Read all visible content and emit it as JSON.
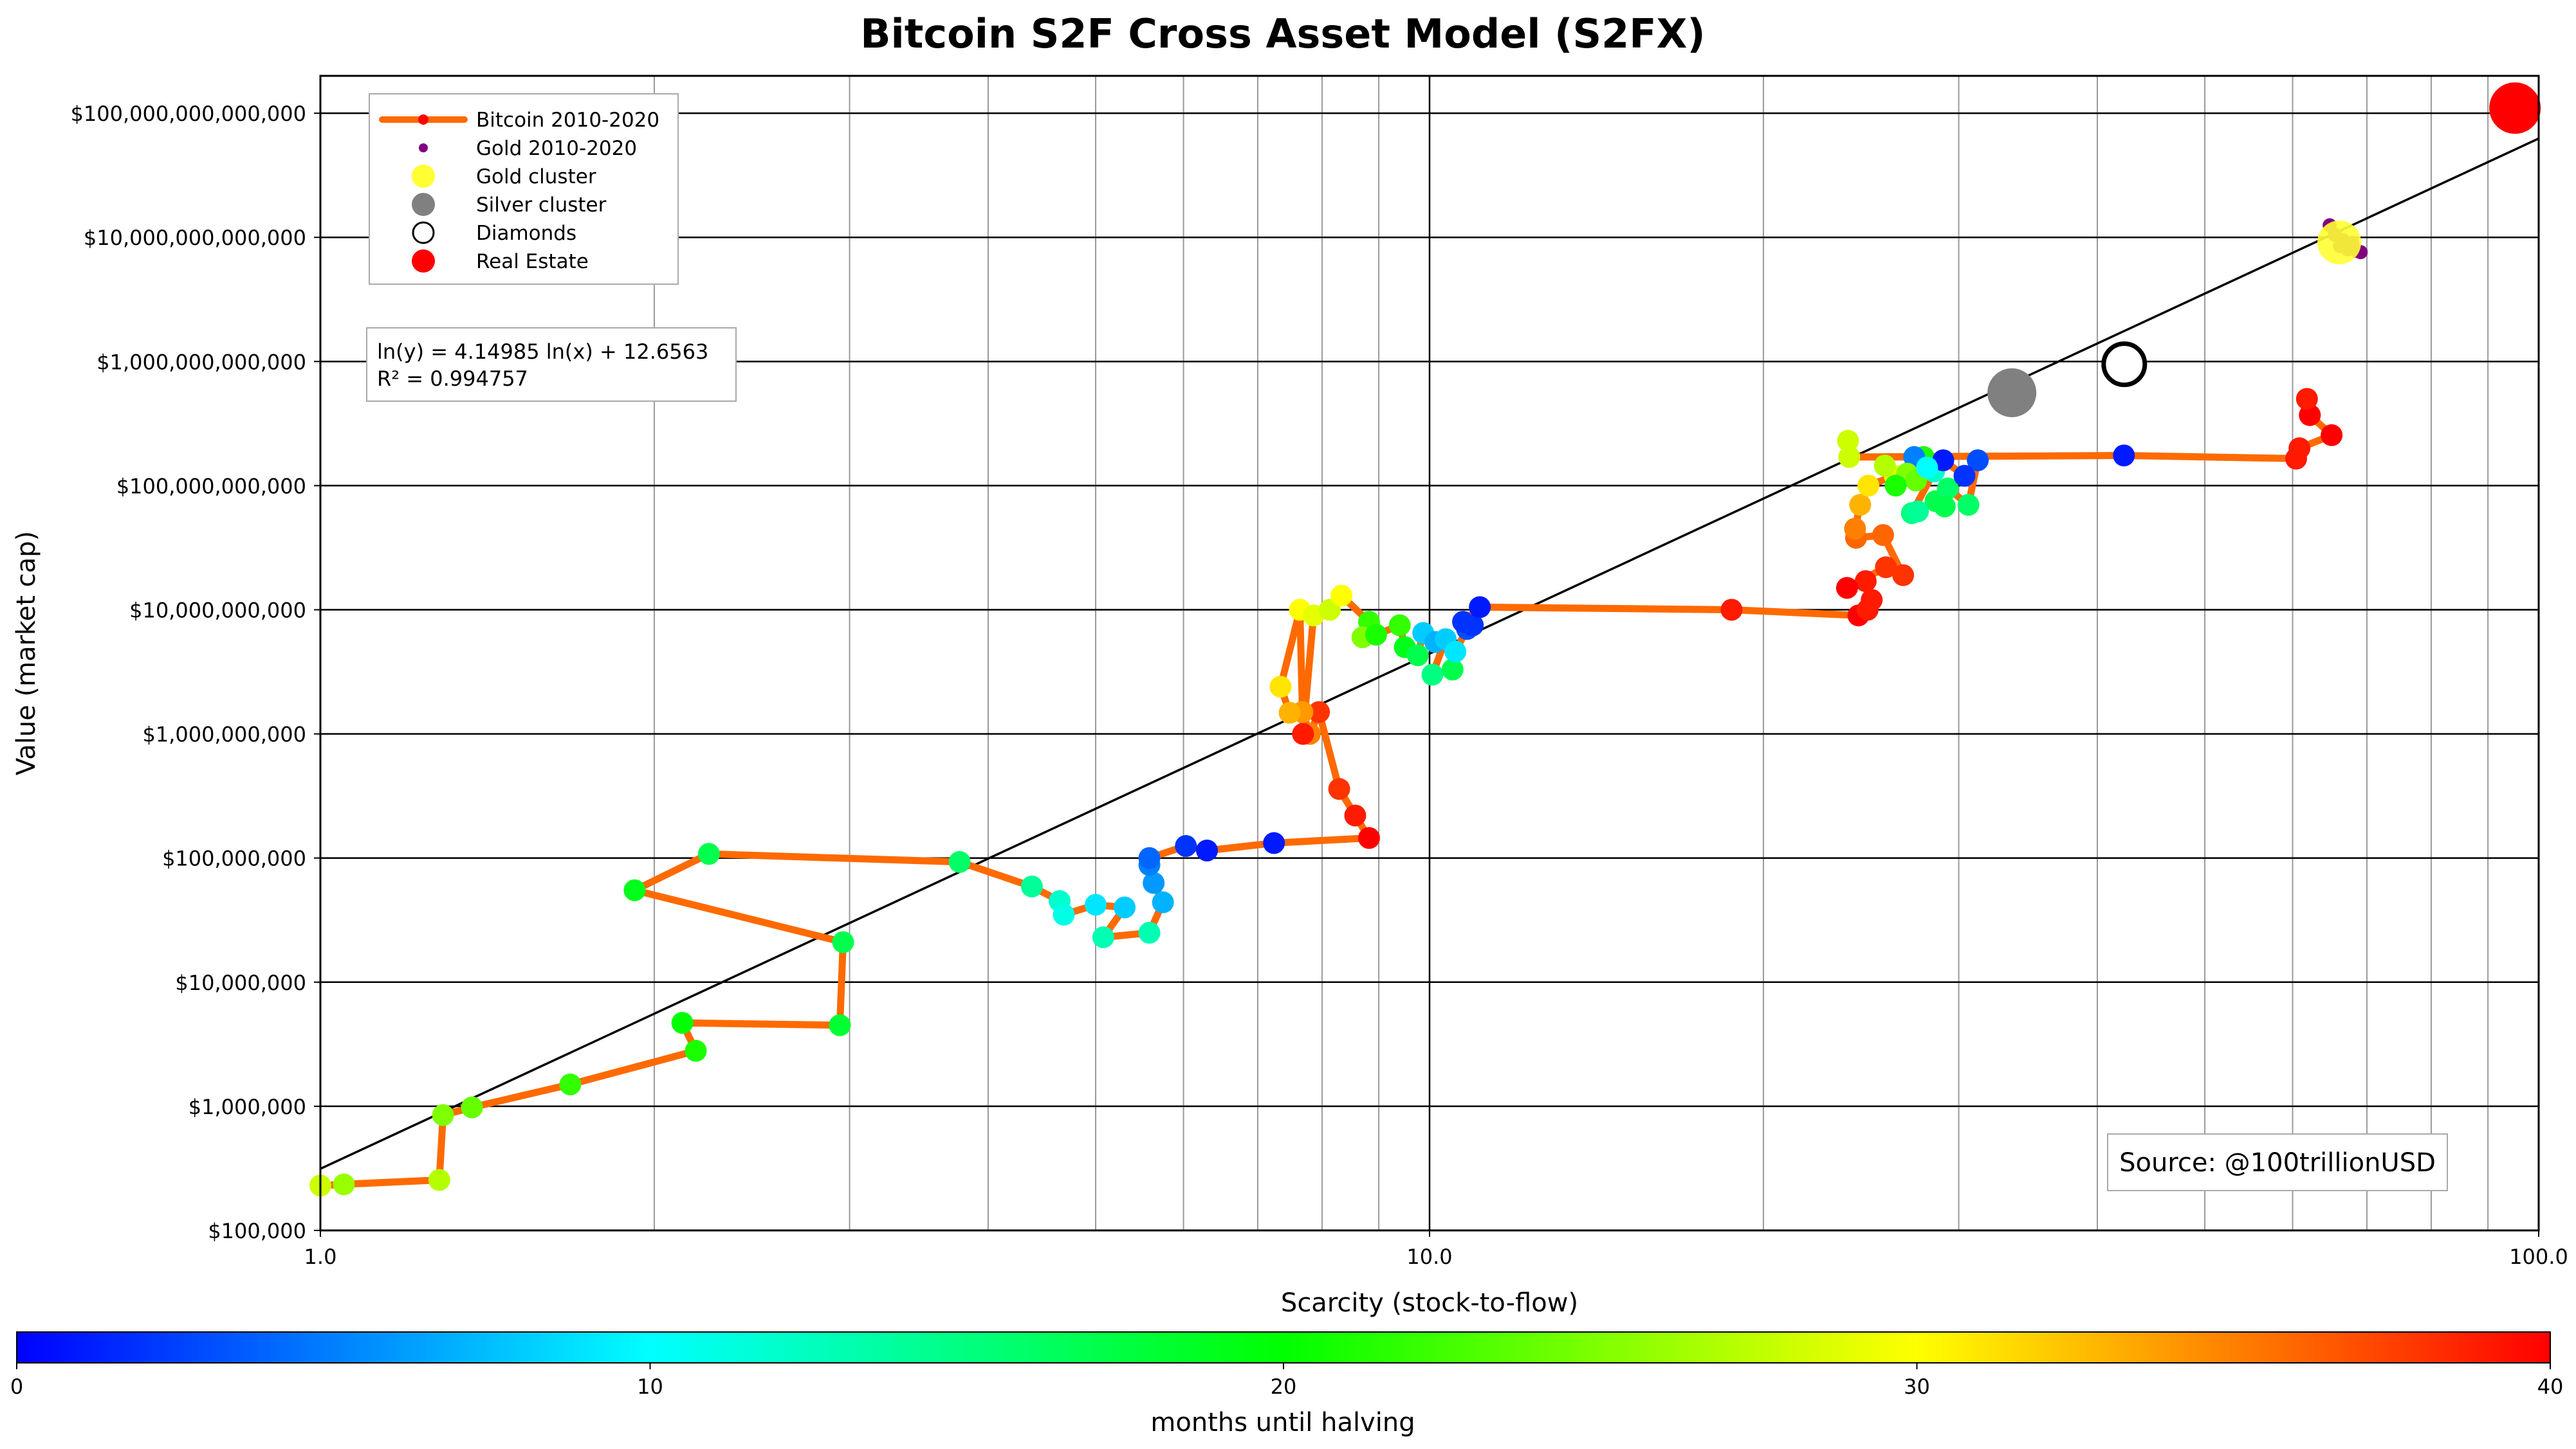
{
  "chart_data": {
    "type": "scatter",
    "title": "Bitcoin S2F Cross Asset Model (S2FX)",
    "xlabel": "Scarcity (stock-to-flow)",
    "ylabel": "Value (market cap)",
    "x_scale": "log",
    "y_scale": "log",
    "xlim": [
      1,
      100
    ],
    "ylim": [
      100000,
      200000000000000
    ],
    "grid": true,
    "x_ticks": [
      {
        "value": 1,
        "label": "1.0"
      },
      {
        "value": 10,
        "label": "10.0"
      },
      {
        "value": 100,
        "label": "100.0"
      }
    ],
    "y_ticks": [
      {
        "value": 100000,
        "label": "$100,000"
      },
      {
        "value": 1000000,
        "label": "$1,000,000"
      },
      {
        "value": 10000000,
        "label": "$10,000,000"
      },
      {
        "value": 100000000,
        "label": "$100,000,000"
      },
      {
        "value": 1000000000,
        "label": "$1,000,000,000"
      },
      {
        "value": 10000000000,
        "label": "$10,000,000,000"
      },
      {
        "value": 100000000000,
        "label": "$100,000,000,000"
      },
      {
        "value": 1000000000000,
        "label": "$1,000,000,000,000"
      },
      {
        "value": 10000000000000,
        "label": "$10,000,000,000,000"
      },
      {
        "value": 100000000000000,
        "label": "$100,000,000,000,000"
      }
    ],
    "legend": {
      "placement": "top-left",
      "entries": [
        {
          "label": "Bitcoin 2010-2020",
          "kind": "line-dot",
          "color": "#ff6a00"
        },
        {
          "label": "Gold 2010-2020",
          "kind": "small-dot",
          "color": "#800080"
        },
        {
          "label": "Gold cluster",
          "kind": "dot",
          "color": "#ffff33"
        },
        {
          "label": "Silver cluster",
          "kind": "dot",
          "color": "#808080"
        },
        {
          "label": "Diamonds",
          "kind": "ring",
          "color": "#000000"
        },
        {
          "label": "Real Estate",
          "kind": "dot",
          "color": "#ff0000"
        }
      ]
    },
    "regression": {
      "equation": "ln(y) = 4.14985 ln(x) + 12.6563",
      "r2_text": "R² = 0.994757",
      "slope": 4.14985,
      "intercept": 12.6563
    },
    "source_text": "Source: @100trillionUSD",
    "colorbar": {
      "label": "months until halving",
      "min": 0,
      "max": 40,
      "ticks": [
        {
          "value": 0,
          "label": "0"
        },
        {
          "value": 10,
          "label": "10"
        },
        {
          "value": 20,
          "label": "20"
        },
        {
          "value": 30,
          "label": "30"
        },
        {
          "value": 40,
          "label": "40"
        }
      ]
    },
    "bitcoin_line_color": "#ff6a00",
    "bitcoin_series": [
      {
        "x": 1.0,
        "y": 230000,
        "m": 28
      },
      {
        "x": 1.05,
        "y": 235000,
        "m": 26
      },
      {
        "x": 1.28,
        "y": 255000,
        "m": 27
      },
      {
        "x": 1.29,
        "y": 850000,
        "m": 25
      },
      {
        "x": 1.37,
        "y": 980000,
        "m": 24
      },
      {
        "x": 1.68,
        "y": 1500000,
        "m": 22
      },
      {
        "x": 2.18,
        "y": 2800000,
        "m": 21
      },
      {
        "x": 2.12,
        "y": 4700000,
        "m": 20
      },
      {
        "x": 2.94,
        "y": 4500000,
        "m": 18
      },
      {
        "x": 2.96,
        "y": 21000000,
        "m": 17
      },
      {
        "x": 1.92,
        "y": 55000000,
        "m": 19
      },
      {
        "x": 2.24,
        "y": 108000000,
        "m": 17
      },
      {
        "x": 3.77,
        "y": 93000000,
        "m": 16
      },
      {
        "x": 4.38,
        "y": 59000000,
        "m": 14
      },
      {
        "x": 4.64,
        "y": 45000000,
        "m": 12
      },
      {
        "x": 4.68,
        "y": 35000000,
        "m": 11
      },
      {
        "x": 5.0,
        "y": 42000000,
        "m": 9
      },
      {
        "x": 5.31,
        "y": 40000000,
        "m": 8
      },
      {
        "x": 5.08,
        "y": 23000000,
        "m": 13
      },
      {
        "x": 5.59,
        "y": 25000000,
        "m": 13
      },
      {
        "x": 5.75,
        "y": 44000000,
        "m": 7
      },
      {
        "x": 5.64,
        "y": 63000000,
        "m": 6
      },
      {
        "x": 5.59,
        "y": 88000000,
        "m": 5
      },
      {
        "x": 5.59,
        "y": 100000000,
        "m": 4
      },
      {
        "x": 6.03,
        "y": 125000000,
        "m": 2
      },
      {
        "x": 6.3,
        "y": 115000000,
        "m": 1
      },
      {
        "x": 7.24,
        "y": 132000000,
        "m": 1
      },
      {
        "x": 8.82,
        "y": 145000000,
        "m": 40
      },
      {
        "x": 8.57,
        "y": 220000000,
        "m": 39
      },
      {
        "x": 8.29,
        "y": 360000000,
        "m": 38
      },
      {
        "x": 7.95,
        "y": 1500000000,
        "m": 38
      },
      {
        "x": 7.8,
        "y": 1000000000,
        "m": 35
      },
      {
        "x": 7.68,
        "y": 1500000000,
        "m": 34
      },
      {
        "x": 7.48,
        "y": 1480000000,
        "m": 33
      },
      {
        "x": 7.34,
        "y": 2400000000,
        "m": 31
      },
      {
        "x": 7.64,
        "y": 10000000000,
        "m": 30
      },
      {
        "x": 7.69,
        "y": 1000000000,
        "m": 39
      },
      {
        "x": 7.86,
        "y": 9000000000,
        "m": 29
      },
      {
        "x": 8.13,
        "y": 10000000000,
        "m": 28
      },
      {
        "x": 8.33,
        "y": 13000000000,
        "m": 30
      },
      {
        "x": 8.82,
        "y": 8000000000,
        "m": 22
      },
      {
        "x": 8.7,
        "y": 6000000000,
        "m": 25
      },
      {
        "x": 8.95,
        "y": 6300000000,
        "m": 21
      },
      {
        "x": 9.4,
        "y": 7500000000,
        "m": 22
      },
      {
        "x": 9.5,
        "y": 5000000000,
        "m": 19
      },
      {
        "x": 9.76,
        "y": 4300000000,
        "m": 17
      },
      {
        "x": 9.87,
        "y": 6500000000,
        "m": 8
      },
      {
        "x": 10.12,
        "y": 5500000000,
        "m": 7
      },
      {
        "x": 10.34,
        "y": 5800000000,
        "m": 8
      },
      {
        "x": 10.06,
        "y": 3000000000,
        "m": 15
      },
      {
        "x": 10.49,
        "y": 3300000000,
        "m": 17
      },
      {
        "x": 10.55,
        "y": 4600000000,
        "m": 9
      },
      {
        "x": 10.81,
        "y": 7000000000,
        "m": 3
      },
      {
        "x": 10.94,
        "y": 7500000000,
        "m": 2
      },
      {
        "x": 10.72,
        "y": 8000000000,
        "m": 2
      },
      {
        "x": 11.1,
        "y": 10500000000,
        "m": 1
      },
      {
        "x": 18.72,
        "y": 10000000000,
        "m": 39
      },
      {
        "x": 24.36,
        "y": 9000000000,
        "m": 40
      },
      {
        "x": 24.83,
        "y": 10000000000,
        "m": 39
      },
      {
        "x": 25.04,
        "y": 12000000000,
        "m": 39
      },
      {
        "x": 24.73,
        "y": 17000000000,
        "m": 39
      },
      {
        "x": 23.79,
        "y": 15000000000,
        "m": 40
      },
      {
        "x": 25.79,
        "y": 22000000000,
        "m": 38
      },
      {
        "x": 26.73,
        "y": 19000000000,
        "m": 38
      },
      {
        "x": 25.64,
        "y": 40000000000,
        "m": 36
      },
      {
        "x": 24.24,
        "y": 38000000000,
        "m": 36
      },
      {
        "x": 24.19,
        "y": 45000000000,
        "m": 35
      },
      {
        "x": 24.45,
        "y": 70000000000,
        "m": 33
      },
      {
        "x": 24.87,
        "y": 100000000000,
        "m": 31
      },
      {
        "x": 26.27,
        "y": 120000000000,
        "m": 29
      },
      {
        "x": 27.29,
        "y": 135000000000,
        "m": 24
      },
      {
        "x": 28.32,
        "y": 145000000000,
        "m": 19
      },
      {
        "x": 27.89,
        "y": 170000000000,
        "m": 21
      },
      {
        "x": 28.5,
        "y": 130000000000,
        "m": 12
      },
      {
        "x": 27.22,
        "y": 60000000000,
        "m": 15
      },
      {
        "x": 28.59,
        "y": 75000000000,
        "m": 17
      },
      {
        "x": 29.33,
        "y": 95000000000,
        "m": 16
      },
      {
        "x": 30.61,
        "y": 70000000000,
        "m": 16
      },
      {
        "x": 31.21,
        "y": 160000000000,
        "m": 3
      },
      {
        "x": 30.36,
        "y": 120000000000,
        "m": 2
      },
      {
        "x": 29.05,
        "y": 160000000000,
        "m": 1
      },
      {
        "x": 27.35,
        "y": 170000000000,
        "m": 5
      },
      {
        "x": 23.9,
        "y": 170000000000,
        "m": 28
      },
      {
        "x": 42.27,
        "y": 175000000000,
        "m": 1
      },
      {
        "x": 60.44,
        "y": 165000000000,
        "m": 39
      },
      {
        "x": 60.86,
        "y": 200000000000,
        "m": 39
      },
      {
        "x": 65.06,
        "y": 255000000000,
        "m": 40
      },
      {
        "x": 62.18,
        "y": 370000000000,
        "m": 40
      },
      {
        "x": 61.81,
        "y": 500000000000,
        "m": 39
      }
    ],
    "extra_points": [
      {
        "x": 23.84,
        "y": 230000000000,
        "m": 28
      },
      {
        "x": 25.73,
        "y": 145000000000,
        "m": 27
      },
      {
        "x": 26.95,
        "y": 125000000000,
        "m": 25
      },
      {
        "x": 27.46,
        "y": 110000000000,
        "m": 24
      },
      {
        "x": 28.09,
        "y": 140000000000,
        "m": 10
      },
      {
        "x": 27.56,
        "y": 62000000000,
        "m": 14
      },
      {
        "x": 29.14,
        "y": 68000000000,
        "m": 17
      },
      {
        "x": 26.32,
        "y": 100000000000,
        "m": 21
      }
    ],
    "gold_series": [
      {
        "x": 64.8,
        "y": 12500000000000
      },
      {
        "x": 65.5,
        "y": 10500000000000
      },
      {
        "x": 66.2,
        "y": 8500000000000
      },
      {
        "x": 67.3,
        "y": 8000000000000
      },
      {
        "x": 68.5,
        "y": 7800000000000
      },
      {
        "x": 69.1,
        "y": 7600000000000
      },
      {
        "x": 67.9,
        "y": 9000000000000
      },
      {
        "x": 66.6,
        "y": 9500000000000
      }
    ],
    "gold_cluster": {
      "x": 66.1,
      "y": 9100000000000
    },
    "silver_cluster": {
      "x": 33.5,
      "y": 560000000000
    },
    "diamonds": {
      "x": 42.3,
      "y": 950000000000
    },
    "real_estate": {
      "x": 95.2,
      "y": 110000000000000
    }
  }
}
